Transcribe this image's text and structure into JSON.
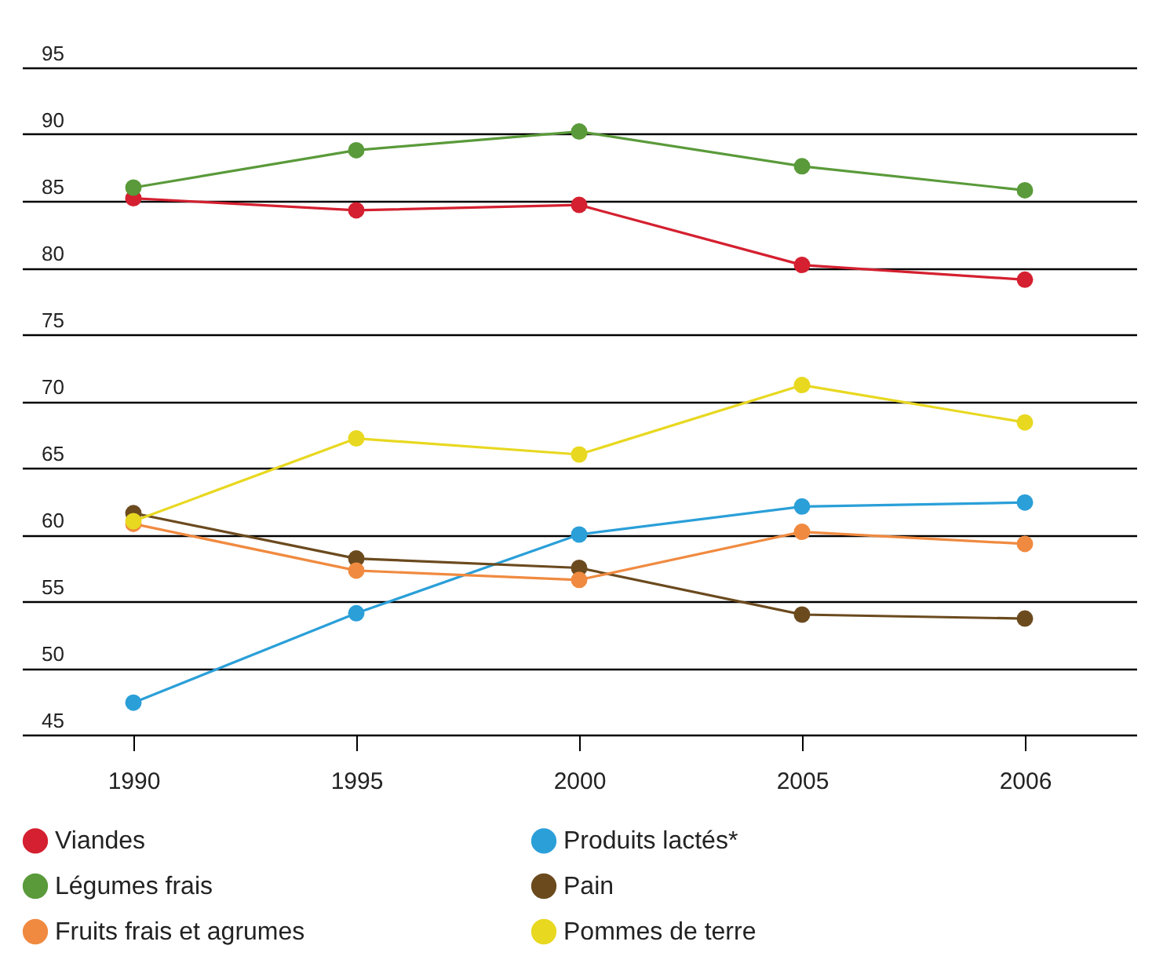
{
  "chart_data": {
    "type": "line",
    "categories": [
      "1990",
      "1995",
      "2000",
      "2005",
      "2006"
    ],
    "series": [
      {
        "name": "Viandes",
        "color": "#d42030",
        "values": [
          85.2,
          84.3,
          84.7,
          80.2,
          79.1
        ]
      },
      {
        "name": "Produits lactés*",
        "color": "#2a9fd8",
        "values": [
          47.4,
          54.1,
          60,
          62.1,
          62.4
        ]
      },
      {
        "name": "Légumes frais",
        "color": "#5a9a3a",
        "values": [
          86,
          88.8,
          90.2,
          87.6,
          85.8
        ]
      },
      {
        "name": "Pain",
        "color": "#6b4a1e",
        "values": [
          61.6,
          58.2,
          57.5,
          54,
          53.7
        ]
      },
      {
        "name": "Fruits frais et agrumes",
        "color": "#f08a40",
        "values": [
          60.8,
          57.3,
          56.6,
          60.2,
          59.3
        ]
      },
      {
        "name": "Pommes de terre",
        "color": "#e8d820",
        "values": [
          61,
          67.2,
          66,
          71.2,
          68.4
        ]
      }
    ],
    "ylim": [
      45,
      95
    ],
    "yticks": [
      45,
      50,
      55,
      60,
      65,
      70,
      75,
      80,
      85,
      90,
      95
    ],
    "grid": "y",
    "legend": "bottom",
    "marker": "circle",
    "line_style": "solid"
  }
}
